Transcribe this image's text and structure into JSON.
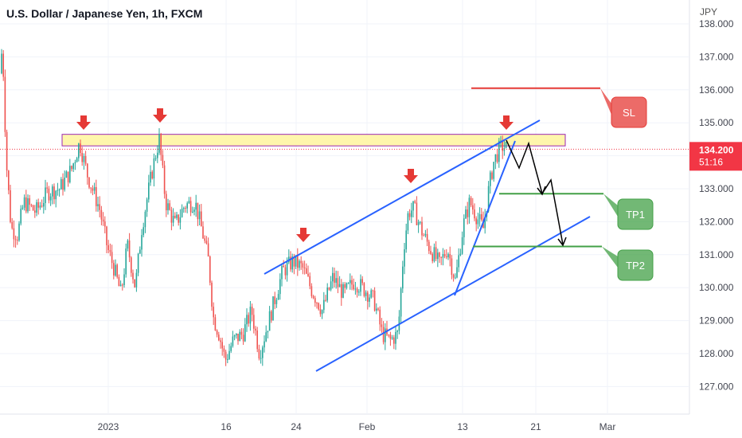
{
  "header": {
    "symbol_title": "U.S. Dollar / Japanese Yen, 1h, FXCM",
    "currency": "JPY"
  },
  "colors": {
    "up_candle": "#26a69a",
    "down_candle": "#ef5350",
    "zone_fill": "#fff59d",
    "zone_border": "#9c27b0",
    "channel": "#2962ff",
    "sl": "#e53935",
    "tp": "#43a047",
    "arrow_marker": "#e53935",
    "price_badge": "#f23645"
  },
  "chart_data": {
    "type": "candlestick",
    "title": "U.S. Dollar / Japanese Yen, 1h, FXCM",
    "y_axis": {
      "unit": "JPY",
      "range": [
        126.6,
        138.3
      ],
      "ticks": [
        "127.000",
        "128.000",
        "129.000",
        "130.000",
        "131.000",
        "132.000",
        "133.000",
        "134.000",
        "135.000",
        "136.000",
        "137.000",
        "138.000"
      ]
    },
    "x_axis": {
      "ticks": [
        "2023",
        "16",
        "24",
        "Feb",
        "13",
        "21",
        "Mar"
      ]
    },
    "current_price": {
      "price": "134.200",
      "countdown": "51:16",
      "value": 134.2
    },
    "price_path": [
      [
        0,
        136.5
      ],
      [
        3,
        137.4
      ],
      [
        8,
        133.8
      ],
      [
        14,
        131.8
      ],
      [
        22,
        131.6
      ],
      [
        30,
        132.6
      ],
      [
        45,
        132.3
      ],
      [
        60,
        132.9
      ],
      [
        75,
        133.0
      ],
      [
        90,
        133.6
      ],
      [
        100,
        134.4
      ],
      [
        110,
        133.4
      ],
      [
        125,
        132.4
      ],
      [
        135,
        131.2
      ],
      [
        143,
        130.6
      ],
      [
        152,
        129.8
      ],
      [
        160,
        131.3
      ],
      [
        170,
        130.0
      ],
      [
        178,
        131.8
      ],
      [
        190,
        133.4
      ],
      [
        196,
        134.1
      ],
      [
        200,
        134.5
      ],
      [
        208,
        132.6
      ],
      [
        220,
        131.9
      ],
      [
        232,
        132.5
      ],
      [
        245,
        132.6
      ],
      [
        255,
        131.6
      ],
      [
        262,
        130.8
      ],
      [
        268,
        129.1
      ],
      [
        275,
        128.6
      ],
      [
        283,
        127.8
      ],
      [
        293,
        128.4
      ],
      [
        305,
        128.6
      ],
      [
        316,
        129.3
      ],
      [
        326,
        128.0
      ],
      [
        340,
        129.2
      ],
      [
        355,
        130.5
      ],
      [
        368,
        130.8
      ],
      [
        380,
        130.6
      ],
      [
        392,
        129.9
      ],
      [
        405,
        129.3
      ],
      [
        418,
        130.3
      ],
      [
        432,
        129.8
      ],
      [
        445,
        130.2
      ],
      [
        460,
        129.9
      ],
      [
        470,
        129.6
      ],
      [
        480,
        128.6
      ],
      [
        490,
        128.4
      ],
      [
        500,
        128.6
      ],
      [
        507,
        131.2
      ],
      [
        513,
        132.3
      ],
      [
        520,
        132.4
      ],
      [
        530,
        131.7
      ],
      [
        540,
        131.2
      ],
      [
        552,
        130.7
      ],
      [
        562,
        131.2
      ],
      [
        572,
        130.2
      ],
      [
        582,
        131.9
      ],
      [
        590,
        132.6
      ],
      [
        600,
        132.1
      ],
      [
        607,
        131.8
      ],
      [
        614,
        133.0
      ],
      [
        620,
        133.8
      ],
      [
        627,
        134.2
      ],
      [
        632,
        134.3
      ],
      [
        637,
        134.2
      ]
    ],
    "annotations": {
      "resistance_zone": {
        "from": 134.3,
        "to": 134.65
      },
      "sl": {
        "label": "SL",
        "price": 136.05
      },
      "tp1": {
        "label": "TP1",
        "price": 132.85
      },
      "tp2": {
        "label": "TP2",
        "price": 131.25
      },
      "arrow_markers": 5
    }
  }
}
